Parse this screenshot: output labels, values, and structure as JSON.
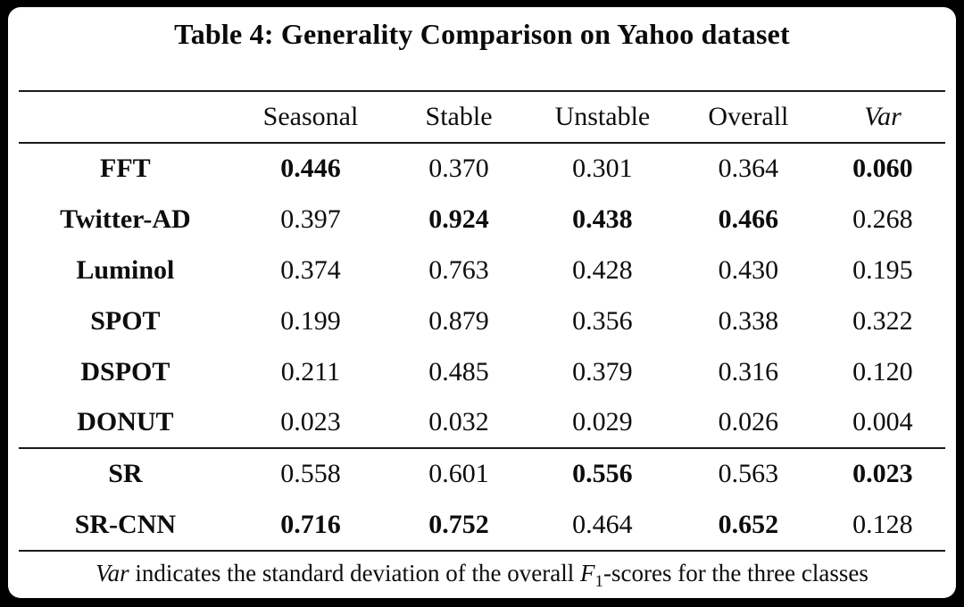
{
  "title": "Table 4: Generality Comparison on Yahoo dataset",
  "table": {
    "columns": [
      "",
      "Seasonal",
      "Stable",
      "Unstable",
      "Overall",
      "Var"
    ],
    "rows": [
      {
        "label": "FFT",
        "values": [
          "0.446",
          "0.370",
          "0.301",
          "0.364",
          "0.060"
        ],
        "bold": [
          true,
          false,
          false,
          false,
          true
        ],
        "section_start": false
      },
      {
        "label": "Twitter-AD",
        "values": [
          "0.397",
          "0.924",
          "0.438",
          "0.466",
          "0.268"
        ],
        "bold": [
          false,
          true,
          true,
          true,
          false
        ],
        "section_start": false
      },
      {
        "label": "Luminol",
        "values": [
          "0.374",
          "0.763",
          "0.428",
          "0.430",
          "0.195"
        ],
        "bold": [
          false,
          false,
          false,
          false,
          false
        ],
        "section_start": false
      },
      {
        "label": "SPOT",
        "values": [
          "0.199",
          "0.879",
          "0.356",
          "0.338",
          "0.322"
        ],
        "bold": [
          false,
          false,
          false,
          false,
          false
        ],
        "section_start": false
      },
      {
        "label": "DSPOT",
        "values": [
          "0.211",
          "0.485",
          "0.379",
          "0.316",
          "0.120"
        ],
        "bold": [
          false,
          false,
          false,
          false,
          false
        ],
        "section_start": false
      },
      {
        "label": "DONUT",
        "values": [
          "0.023",
          "0.032",
          "0.029",
          "0.026",
          "0.004"
        ],
        "bold": [
          false,
          false,
          false,
          false,
          false
        ],
        "section_start": false
      },
      {
        "label": "SR",
        "values": [
          "0.558",
          "0.601",
          "0.556",
          "0.563",
          "0.023"
        ],
        "bold": [
          false,
          false,
          true,
          false,
          true
        ],
        "section_start": true
      },
      {
        "label": "SR-CNN",
        "values": [
          "0.716",
          "0.752",
          "0.464",
          "0.652",
          "0.128"
        ],
        "bold": [
          true,
          true,
          false,
          true,
          false
        ],
        "section_start": false
      }
    ]
  },
  "footnote": {
    "var_term": "Var",
    "text_before_f": " indicates the standard deviation of the overall ",
    "f_symbol": "F",
    "f_subscript": "1",
    "text_after_f": "-scores for the three classes"
  },
  "colors": {
    "background": "#000000",
    "card": "#ffffff",
    "text": "#0d0d0d",
    "rule": "#1a1a1a"
  }
}
